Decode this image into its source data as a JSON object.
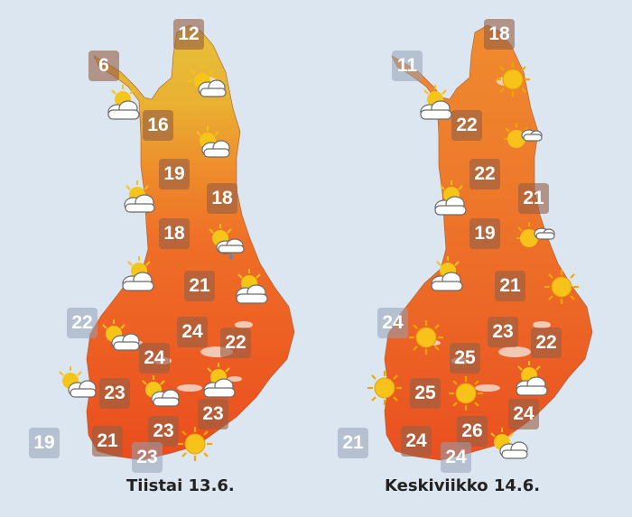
{
  "colors": {
    "background": "#dce6f1",
    "north_gradient": "#e8c23a",
    "south_fill": "#ee5a22",
    "box": "#96604a",
    "box_light": "#96a0b4"
  },
  "maps": [
    {
      "caption": "Tiistai  13.6.",
      "temps": [
        "12",
        "6",
        "16",
        "19",
        "18",
        "18",
        "21",
        "22",
        "24",
        "22",
        "24",
        "23",
        "23",
        "23",
        "19",
        "21",
        "23"
      ],
      "icons": [
        "partly-cloudy-icon",
        "partly-cloudy-icon",
        "partly-cloudy-icon",
        "partly-cloudy-icon",
        "rain-showers-icon",
        "partly-cloudy-icon",
        "partly-cloudy-icon",
        "partly-cloudy-icon",
        "partly-cloudy-icon",
        "partly-cloudy-icon",
        "partly-cloudy-icon",
        "sun-icon"
      ]
    },
    {
      "caption": "Keskiviikko  14.6.",
      "temps": [
        "18",
        "11",
        "22",
        "22",
        "21",
        "19",
        "21",
        "24",
        "23",
        "22",
        "25",
        "25",
        "24",
        "21",
        "24",
        "26",
        "24"
      ],
      "icons": [
        "sun-icon",
        "partly-cloudy-icon",
        "partly-cloudy-icon",
        "partly-cloudy-icon",
        "partly-cloudy-icon",
        "partly-cloudy-icon",
        "sun-icon",
        "sun-icon",
        "sun-icon",
        "sun-icon",
        "partly-cloudy-icon",
        "partly-cloudy-icon"
      ]
    }
  ]
}
